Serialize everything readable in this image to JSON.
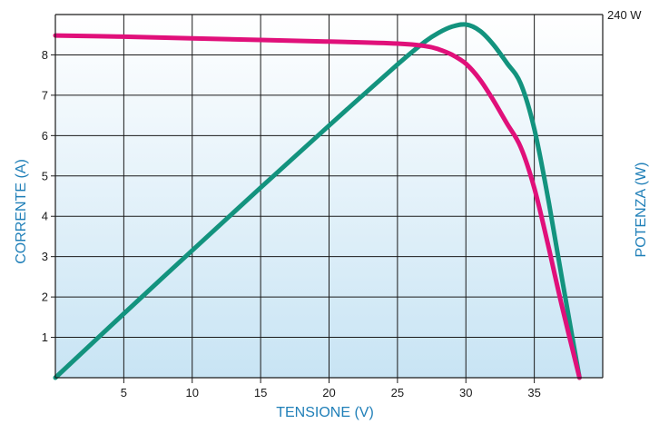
{
  "chart_data": {
    "type": "line",
    "xlabel": "TENSIONE (V)",
    "ylabel": "CORRENTE (A)",
    "y2label": "POTENZA (W)",
    "y2_max_label": "240 W",
    "xlim": [
      0,
      40
    ],
    "ylim": [
      0,
      9.0
    ],
    "y2lim": [
      0,
      240
    ],
    "x_ticks": [
      5,
      10,
      15,
      20,
      25,
      30,
      35
    ],
    "y_ticks": [
      1,
      2,
      3,
      4,
      5,
      6,
      7,
      8
    ],
    "grid": true,
    "series": [
      {
        "key": "current",
        "axis": "left",
        "color": "#e0107a",
        "x": [
          0,
          5,
          10,
          15,
          20,
          25,
          27,
          28,
          29,
          30,
          31,
          32,
          33,
          34,
          35,
          36,
          37,
          38.3
        ],
        "y": [
          8.48,
          8.45,
          8.41,
          8.37,
          8.33,
          8.28,
          8.22,
          8.14,
          8.0,
          7.78,
          7.4,
          6.88,
          6.3,
          5.72,
          4.7,
          3.3,
          1.8,
          0
        ]
      },
      {
        "key": "power",
        "axis": "right",
        "color": "#13937e",
        "x": [
          0,
          5,
          10,
          15,
          20,
          25,
          27,
          28,
          29,
          30,
          31,
          32,
          33,
          34,
          35,
          36,
          37,
          38.3
        ],
        "y": [
          0,
          42.3,
          84.1,
          125.6,
          166.6,
          207.0,
          222.0,
          227.9,
          232.0,
          233.4,
          229.4,
          220.2,
          207.9,
          194.5,
          164.5,
          118.8,
          66.6,
          0
        ]
      }
    ]
  },
  "colors": {
    "axis_title": "#1f7fb8",
    "bg_top": "#ffffff",
    "bg_bottom": "#c8e4f4",
    "grid": "#1a1a1a"
  }
}
